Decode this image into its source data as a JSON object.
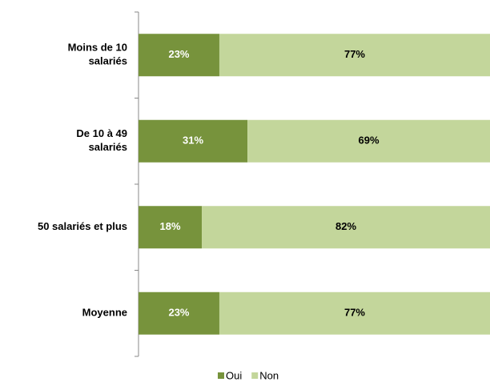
{
  "chart_data": {
    "type": "stacked_bar_horizontal",
    "categories": [
      [
        "Moins de 10",
        "salariés"
      ],
      [
        "De 10 à 49",
        "salariés"
      ],
      [
        "50 salariés et plus"
      ],
      [
        "Moyenne"
      ]
    ],
    "series": [
      {
        "name": "Oui",
        "color": "#77933c",
        "values": [
          23,
          31,
          18,
          23
        ],
        "value_labels": [
          "23%",
          "31%",
          "18%",
          "23%"
        ]
      },
      {
        "name": "Non",
        "color": "#c3d69b",
        "values": [
          77,
          69,
          82,
          77
        ],
        "value_labels": [
          "77%",
          "69%",
          "82%",
          "77%"
        ]
      }
    ],
    "xlim": [
      0,
      100
    ],
    "legend": "bottom"
  }
}
